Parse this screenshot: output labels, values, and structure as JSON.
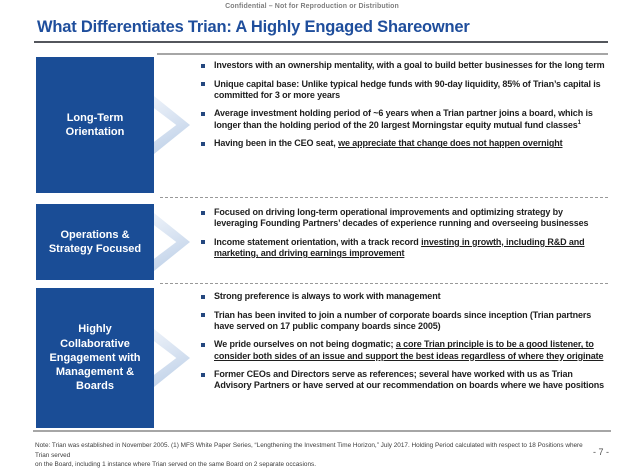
{
  "header": {
    "confidential_notice": "Confidential – Not for Reproduction or Distribution",
    "title": "What Differentiates Trian: A Highly Engaged Shareowner"
  },
  "colors": {
    "box_blue": "#1a4d96",
    "title_blue": "#1f4e9c",
    "arrow_light_blue": "#d7e2f1",
    "rule_gray": "#a6a6a6"
  },
  "sections": [
    {
      "label": "Long-Term Orientation",
      "bullets": [
        [
          {
            "text": "Investors with an ownership mentality, with a goal to build better businesses for the long term"
          }
        ],
        [
          {
            "text": "Unique capital base: Unlike typical hedge funds with 90-day liquidity, 85% of Trian’s capital is committed for 3 or more years"
          }
        ],
        [
          {
            "text": "Average investment holding period of ~6 years when a Trian partner joins a board, which is longer than the holding period of the 20 largest Morningstar equity mutual fund classes"
          },
          {
            "text": "1",
            "style": "sup"
          }
        ],
        [
          {
            "text": "Having been in the CEO seat, "
          },
          {
            "text": "we appreciate that change does not happen overnight",
            "style": "underline"
          }
        ]
      ]
    },
    {
      "label": "Operations & Strategy Focused",
      "bullets": [
        [
          {
            "text": "Focused on driving long-term operational improvements and optimizing strategy by leveraging Founding Partners’ decades of experience running and overseeing businesses"
          }
        ],
        [
          {
            "text": "Income statement orientation, with a track record "
          },
          {
            "text": "investing in growth, including R&D and marketing, and driving earnings improvement",
            "style": "underline"
          }
        ]
      ]
    },
    {
      "label": "Highly Collaborative Engagement with Management & Boards",
      "bullets": [
        [
          {
            "text": "Strong preference is always to work with management"
          }
        ],
        [
          {
            "text": "Trian has been invited to join a number of corporate boards since inception (Trian partners have served on 17 public company boards since 2005)"
          }
        ],
        [
          {
            "text": "We pride ourselves on not being dogmatic; "
          },
          {
            "text": "a core Trian principle is to be a good listener, to consider both sides of an issue and support the best ideas regardless of where they originate",
            "style": "underline"
          }
        ],
        [
          {
            "text": "Former CEOs and Directors serve as references; several have worked with us as Trian Advisory Partners or have served at our recommendation on boards where we have positions"
          }
        ]
      ]
    }
  ],
  "footer": {
    "note_line_1": "Note: Trian was established in November 2005. (1) MFS White Paper Series, “Lengthening the Investment Time Horizon,” July 2017. Holding Period calculated with respect to 18 Positions where Trian served",
    "note_line_2": "on the Board, including 1 instance where Trian served on the same Board on 2 separate occasions.",
    "page_number": "- 7 -"
  }
}
